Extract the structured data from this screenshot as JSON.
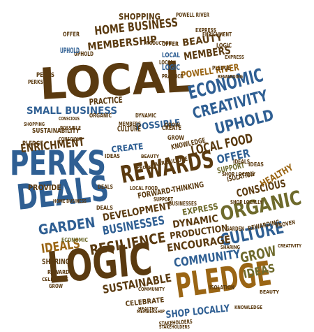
{
  "colors": {
    "brown": "#5a3a10",
    "blue": "#2f5f93",
    "olive": "#6e6a2c",
    "gold": "#9a6514",
    "dark": "#3a3a3a"
  },
  "words": {
    "local": "LOCAL",
    "logic": "LOGIC",
    "perks": "PERKS",
    "deals": "DEALS",
    "pledge": "PLEDGE",
    "rewards": "REWARDS",
    "organic": "ORGANIC",
    "culture": "CULTURE",
    "economic": "ECONOMIC",
    "creativity": "CREATIVITY",
    "uphold": "UPHOLD",
    "local_food": "LOCAL FOOD",
    "small_business": "SMALL BUSINESS",
    "enrichment": "ENRICHMENT",
    "home_business": "HOME BUSINESS",
    "membership": "MEMBERSHIP",
    "beauty": "BEAUTY",
    "members": "MEMBERS",
    "powell_river": "POWELL RIVER",
    "shopping": "SHOPPING",
    "garden": "GARDEN",
    "ideals": "IDEALS",
    "resilience": "RESILIENCE",
    "businesses": "BUSINESSES",
    "development": "DEVELOPMENT",
    "community": "COMMUNITY",
    "sustainable": "SUSTAINABLE",
    "shop_locally": "SHOP LOCALLY",
    "encourage": "ENCOURAGE",
    "production": "PRODUCTION",
    "dynamic": "DYNAMIC",
    "express": "EXPRESS",
    "forward_thinking": "FORWARD-THINKING",
    "conscious": "CONSCIOUS",
    "grow": "GROW",
    "ideas": "IDEAS",
    "healthy": "HEALTHY",
    "offer": "OFFER",
    "possible": "POSSIBLE",
    "provide": "PROVIDE",
    "create": "CREATE",
    "practice": "PRACTICE",
    "sharing": "SHARING",
    "celebrate": "CELEBRATE",
    "knowledge": "KNOWLEDGE",
    "support": "SUPPORT",
    "sustainability": "SUSTAINABILITY",
    "stakeholders": "STAKEHOLDERS",
    "isolation": "ISOLATION",
    "agriculture": "AGRICULTURE",
    "rewarding": "REWARDING",
    "proven": "PROVEN",
    "economic_small": "ECONOMIC",
    "perks_small": "PERKS",
    "organic_small": "ORGANIC",
    "grow_small": "GROW",
    "local_small": "LOCAL",
    "deals_small": "DEALS",
    "rewards_small": "REWARDS",
    "shopping_small": "SHOPPING",
    "celebrate_small": "CELEBRATE",
    "beauty_small": "BEAUTY",
    "offer_small": "OFFER",
    "pledge_small": "PLEDGE",
    "local_food_small": "LOCAL FOOD",
    "home_business_small": "HOME BUSINESS",
    "uphold_small": "UPHOLD",
    "ideas_small": "IDEAS",
    "members_small": "MEMBERS",
    "culture_small": "CULTURE",
    "logic_small": "LOGIC",
    "creativity_small": "CREATIVITY",
    "membership_small": "MEMBERSHIP",
    "community_small": "COMMUNITY",
    "conscious_small": "CONSCIOUS",
    "healthy_small": "HEALTHY",
    "production_small": "PRODUCTION",
    "express_small": "EXPRESS",
    "dynamic_small": "DYNAMIC",
    "garden_small": "GARDEN",
    "sharing_small": "SHARING",
    "local_small2": "LOCAL",
    "shop_locally_small": "SHOP LOCALLY",
    "possible_small": "POSSIBLE",
    "support_small": "SUPPORT",
    "enrichment_small": "ENRICHMENT",
    "isolation_small": "ISOLATION",
    "practice_small": "PRACTICE",
    "businesses_small": "BUSINESSES",
    "powell_river_small": "POWELL RIVER",
    "stakeholders_small": "STAKEHOLDERS",
    "knowledge_small": "KNOWLEDGE",
    "grow_small2": "GROW",
    "offer_small2": "OFFER",
    "create_small": "CREATE",
    "uphold_small2": "UPHOLD",
    "perks_small2": "PERKS",
    "ideals_small": "IDEALS",
    "deals_small2": "DEALS",
    "express_small2": "EXPRESS",
    "rewarding_small": "REWARDING",
    "proven_small": "PROVEN",
    "beauty_small2": "BEAUTY",
    "shop_locally_small2": "SHOP LOCALLY",
    "pledge_small2": "PLEDGE",
    "logic_small2": "LOGIC",
    "ideas_small2": "IDEAS",
    "conscious_small2": "CONSCIOUS",
    "grow_small3": "GROW"
  }
}
